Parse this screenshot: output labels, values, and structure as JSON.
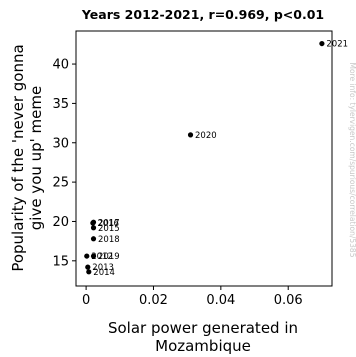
{
  "chart_data": {
    "type": "scatter",
    "title": "Years 2012-2021, r=0.969, p<0.01",
    "xlabel": [
      "Solar power generated in",
      "Mozambique"
    ],
    "ylabel": [
      "Popularity of the 'never gonna",
      "give you up' meme"
    ],
    "xlim": [
      -0.003,
      0.073
    ],
    "ylim": [
      11.8,
      44.2
    ],
    "xticks": [
      {
        "value": 0,
        "label": "0"
      },
      {
        "value": 0.02,
        "label": "0.02"
      },
      {
        "value": 0.04,
        "label": "0.04"
      },
      {
        "value": 0.06,
        "label": "0.06"
      }
    ],
    "yticks": [
      {
        "value": 15,
        "label": "15"
      },
      {
        "value": 20,
        "label": "20"
      },
      {
        "value": 25,
        "label": "25"
      },
      {
        "value": 30,
        "label": "30"
      },
      {
        "value": 35,
        "label": "35"
      },
      {
        "value": 40,
        "label": "40"
      }
    ],
    "grid": false,
    "points": [
      {
        "label": "2012",
        "x": 0.0002,
        "y": 15.6
      },
      {
        "label": "2013",
        "x": 0.0005,
        "y": 14.2
      },
      {
        "label": "2014",
        "x": 0.0008,
        "y": 13.6
      },
      {
        "label": "2015",
        "x": 0.0022,
        "y": 19.2
      },
      {
        "label": "2016",
        "x": 0.002,
        "y": 19.8
      },
      {
        "label": "2017",
        "x": 0.0022,
        "y": 19.9
      },
      {
        "label": "2018",
        "x": 0.0022,
        "y": 17.8
      },
      {
        "label": "2019",
        "x": 0.0022,
        "y": 15.6
      },
      {
        "label": "2020",
        "x": 0.031,
        "y": 31.0
      },
      {
        "label": "2021",
        "x": 0.07,
        "y": 42.6
      }
    ],
    "marker_color": "#000000"
  },
  "watermark": "More info: tylervigen.com/spurious/correlation/5385"
}
